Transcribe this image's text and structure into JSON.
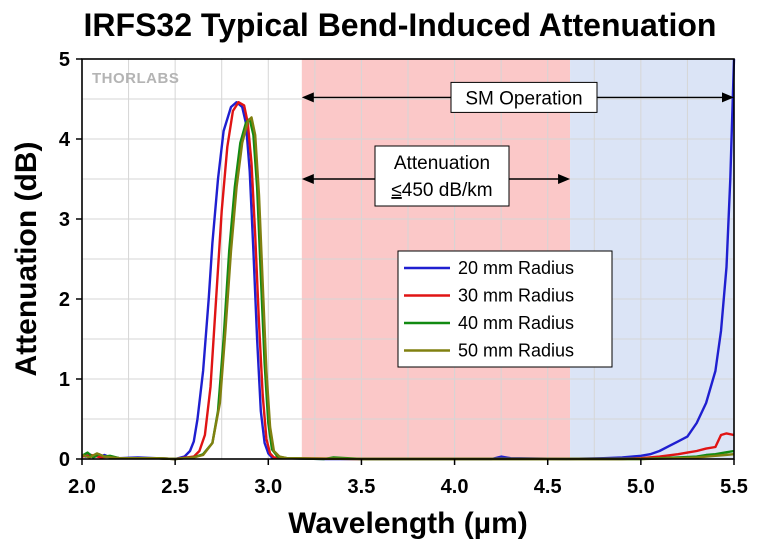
{
  "chart_data": {
    "type": "line",
    "title": "IRFS32 Typical Bend-Induced Attenuation",
    "xlabel": "Wavelength (µm)",
    "ylabel": "Attenuation (dB)",
    "xlim": [
      2.0,
      5.5
    ],
    "ylim": [
      0,
      5
    ],
    "xticks": [
      "2.0",
      "2.5",
      "3.0",
      "3.5",
      "4.0",
      "4.5",
      "5.0",
      "5.5"
    ],
    "yticks": [
      "0",
      "1",
      "2",
      "3",
      "4",
      "5"
    ],
    "grid": true,
    "legend_position": "center-right",
    "logo": "THORLABS",
    "regions": [
      {
        "name": "attenuation-region",
        "x_start": 3.18,
        "x_end": 4.62,
        "color": "#fbc8c8"
      },
      {
        "name": "sm-operation-region",
        "x_start": 4.62,
        "x_end": 5.5,
        "color": "#dbe4f6"
      }
    ],
    "annotations": {
      "sm_operation": {
        "text": "SM Operation",
        "x_start": 3.18,
        "x_end": 5.5,
        "y": 4.52
      },
      "attenuation": {
        "line1": "Attenuation",
        "line2_prefix": "≤",
        "line2_rest": "450 dB/km",
        "x_start": 3.18,
        "x_end": 4.62,
        "y": 3.5
      }
    },
    "series": [
      {
        "name": "20 mm Radius",
        "color": "#1f1fd0",
        "x": [
          2.0,
          2.02,
          2.04,
          2.06,
          2.08,
          2.1,
          2.12,
          2.15,
          2.2,
          2.3,
          2.4,
          2.5,
          2.55,
          2.58,
          2.6,
          2.62,
          2.65,
          2.68,
          2.7,
          2.73,
          2.76,
          2.8,
          2.83,
          2.86,
          2.88,
          2.9,
          2.92,
          2.94,
          2.96,
          2.98,
          3.0,
          3.02,
          3.05,
          3.1,
          3.3,
          3.6,
          3.9,
          4.2,
          4.25,
          4.3,
          4.6,
          4.8,
          4.9,
          5.0,
          5.05,
          5.1,
          5.15,
          5.2,
          5.25,
          5.3,
          5.35,
          5.4,
          5.43,
          5.46,
          5.48,
          5.5
        ],
        "y": [
          0.05,
          0.03,
          0.06,
          0.02,
          0.04,
          0.03,
          0.05,
          0.02,
          0.01,
          0.02,
          0.01,
          0.0,
          0.03,
          0.1,
          0.22,
          0.5,
          1.1,
          2.0,
          2.7,
          3.5,
          4.1,
          4.4,
          4.46,
          4.4,
          4.2,
          3.6,
          2.6,
          1.5,
          0.6,
          0.2,
          0.07,
          0.02,
          0.01,
          0.01,
          0.0,
          0.0,
          0.0,
          0.0,
          0.03,
          0.01,
          0.0,
          0.01,
          0.02,
          0.04,
          0.06,
          0.1,
          0.16,
          0.22,
          0.28,
          0.45,
          0.7,
          1.1,
          1.6,
          2.4,
          3.5,
          5.0
        ]
      },
      {
        "name": "30 mm Radius",
        "color": "#e01414",
        "x": [
          2.0,
          2.05,
          2.1,
          2.15,
          2.2,
          2.4,
          2.5,
          2.6,
          2.63,
          2.66,
          2.69,
          2.72,
          2.75,
          2.78,
          2.81,
          2.84,
          2.87,
          2.89,
          2.91,
          2.93,
          2.95,
          2.97,
          2.99,
          3.01,
          3.03,
          3.1,
          3.5,
          4.0,
          4.5,
          4.9,
          5.0,
          5.1,
          5.2,
          5.25,
          5.3,
          5.35,
          5.4,
          5.43,
          5.46,
          5.5
        ],
        "y": [
          0.03,
          0.05,
          0.02,
          0.03,
          0.01,
          0.01,
          0.0,
          0.03,
          0.1,
          0.3,
          0.9,
          2.0,
          3.1,
          3.9,
          4.35,
          4.46,
          4.42,
          4.2,
          3.7,
          2.8,
          1.7,
          0.8,
          0.25,
          0.07,
          0.02,
          0.01,
          0.0,
          0.0,
          0.0,
          0.0,
          0.01,
          0.03,
          0.06,
          0.08,
          0.1,
          0.13,
          0.15,
          0.3,
          0.32,
          0.3
        ]
      },
      {
        "name": "40 mm Radius",
        "color": "#128a12",
        "x": [
          2.0,
          2.03,
          2.06,
          2.09,
          2.12,
          2.15,
          2.2,
          2.4,
          2.5,
          2.6,
          2.65,
          2.7,
          2.73,
          2.76,
          2.79,
          2.82,
          2.85,
          2.88,
          2.9,
          2.92,
          2.94,
          2.96,
          2.98,
          3.0,
          3.02,
          3.05,
          3.1,
          3.3,
          3.35,
          3.5,
          4.0,
          4.5,
          5.0,
          5.2,
          5.3,
          5.35,
          5.4,
          5.45,
          5.5
        ],
        "y": [
          0.04,
          0.08,
          0.02,
          0.06,
          0.03,
          0.04,
          0.01,
          0.01,
          0.0,
          0.02,
          0.06,
          0.2,
          0.6,
          1.5,
          2.6,
          3.4,
          3.95,
          4.2,
          4.25,
          4.05,
          3.4,
          2.3,
          1.2,
          0.45,
          0.12,
          0.03,
          0.01,
          0.0,
          0.02,
          0.0,
          0.0,
          0.0,
          0.0,
          0.02,
          0.03,
          0.05,
          0.06,
          0.08,
          0.1
        ]
      },
      {
        "name": "50 mm Radius",
        "color": "#808010",
        "x": [
          2.0,
          2.04,
          2.08,
          2.12,
          2.16,
          2.2,
          2.4,
          2.5,
          2.6,
          2.65,
          2.7,
          2.74,
          2.77,
          2.8,
          2.83,
          2.86,
          2.89,
          2.91,
          2.93,
          2.95,
          2.97,
          2.99,
          3.01,
          3.03,
          3.06,
          3.1,
          3.5,
          4.0,
          4.5,
          5.0,
          5.2,
          5.3,
          5.4,
          5.45,
          5.5
        ],
        "y": [
          0.05,
          0.02,
          0.07,
          0.03,
          0.02,
          0.01,
          0.01,
          0.0,
          0.02,
          0.05,
          0.2,
          0.7,
          1.6,
          2.6,
          3.4,
          3.95,
          4.22,
          4.27,
          4.05,
          3.3,
          2.2,
          1.1,
          0.4,
          0.1,
          0.03,
          0.01,
          0.0,
          0.0,
          0.0,
          0.0,
          0.01,
          0.02,
          0.04,
          0.05,
          0.06
        ]
      }
    ]
  }
}
